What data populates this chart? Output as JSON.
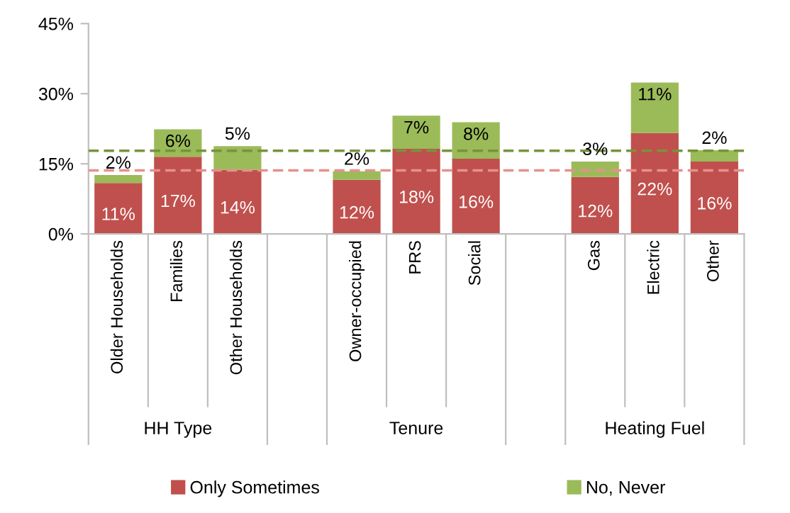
{
  "chart_data": {
    "type": "bar",
    "stacked": true,
    "categories": [
      "Older Households",
      "Families",
      "Other Households",
      null,
      "Owner-occupied",
      "PRS",
      "Social",
      null,
      "Gas",
      "Electric",
      "Other"
    ],
    "series": [
      {
        "name": "Only Sometimes",
        "color": "#c0504d",
        "values": [
          10.9,
          16.5,
          13.7,
          null,
          11.6,
          18.2,
          16.1,
          null,
          12.2,
          21.6,
          15.5
        ],
        "value_labels": [
          "11%",
          "17%",
          "14%",
          null,
          "12%",
          "18%",
          "16%",
          null,
          "12%",
          "22%",
          "16%"
        ]
      },
      {
        "name": "No, Never",
        "color": "#9bbb59",
        "values": [
          1.7,
          5.9,
          5.1,
          null,
          1.8,
          7.1,
          7.8,
          null,
          3.3,
          10.8,
          2.4
        ],
        "value_labels": [
          "2%",
          "6%",
          "5%",
          null,
          "2%",
          "7%",
          "8%",
          null,
          "3%",
          "11%",
          "2%"
        ]
      }
    ],
    "ylim": [
      0,
      45
    ],
    "yticks": [
      {
        "value": 0,
        "label": "0%"
      },
      {
        "value": 15,
        "label": "15%"
      },
      {
        "value": 30,
        "label": "30%"
      },
      {
        "value": 45,
        "label": "45%"
      }
    ],
    "ref_lines": [
      {
        "axis": "y",
        "value": 17.8,
        "label": null,
        "color": "#77933c",
        "line_style": "dashed"
      },
      {
        "axis": "y",
        "value": 13.6,
        "label": null,
        "color": "#e6908e",
        "line_style": "dashed"
      }
    ],
    "annotations": [
      "HH Type",
      "Tenure",
      "Heating Fuel"
    ],
    "grid": false,
    "legend": "bottom"
  }
}
